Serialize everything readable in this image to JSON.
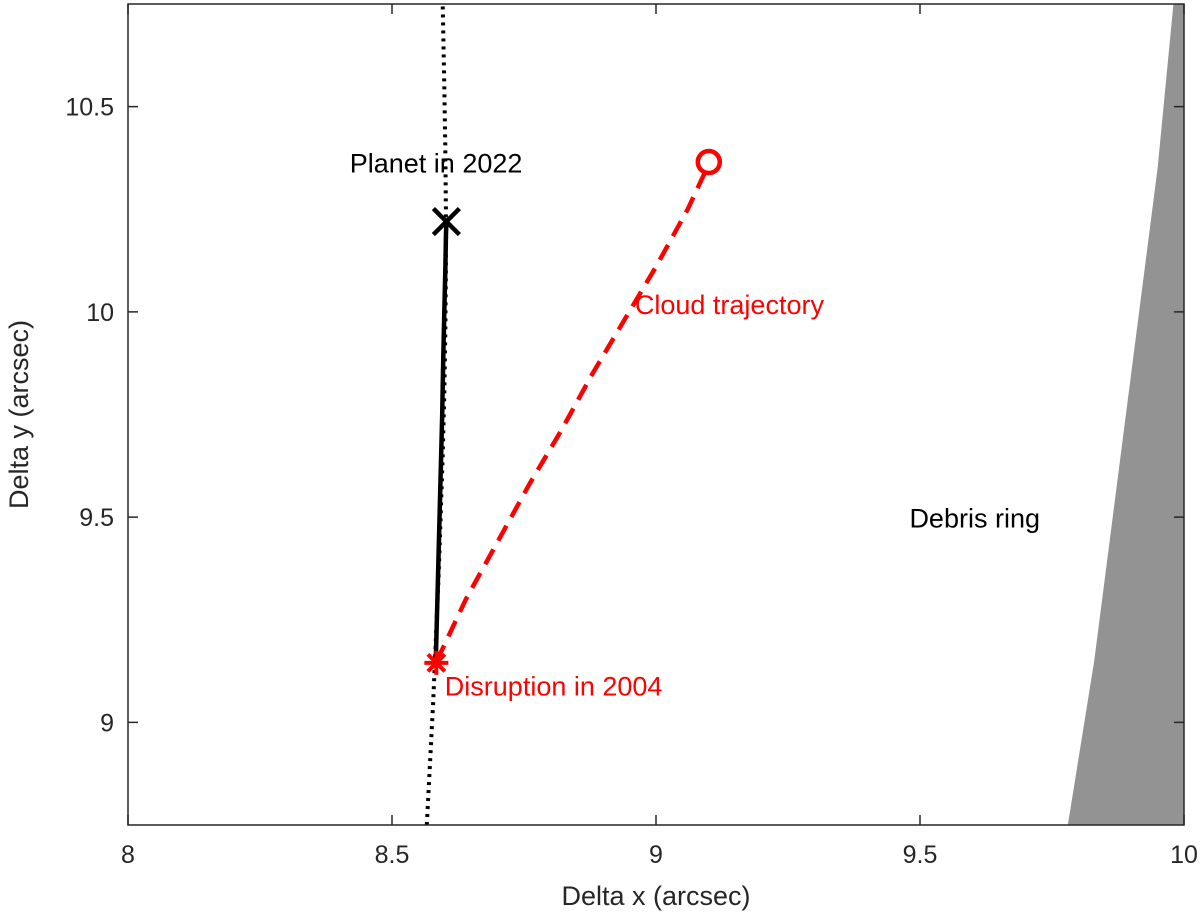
{
  "chart_data": {
    "type": "line",
    "xlabel": "Delta x (arcsec)",
    "ylabel": "Delta y (arcsec)",
    "xlim": [
      8,
      10
    ],
    "ylim": [
      8.75,
      10.75
    ],
    "xticks": [
      8,
      8.5,
      9,
      9.5,
      10
    ],
    "xtick_labels": [
      "8",
      "8.5",
      "9",
      "9.5",
      "10"
    ],
    "yticks": [
      9,
      9.5,
      10,
      10.5
    ],
    "ytick_labels": [
      "9",
      "9.5",
      "10",
      "10.5"
    ],
    "grid": false,
    "series": [
      {
        "style": "dotted",
        "color": "#000000",
        "x": [
          8.566,
          8.572,
          8.578,
          8.583,
          8.588,
          8.592,
          8.596,
          8.599,
          8.601,
          8.602,
          8.602,
          8.601,
          8.599,
          8.596
        ],
        "y": [
          8.75,
          8.9,
          9.05,
          9.2,
          9.35,
          9.5,
          9.65,
          9.8,
          9.95,
          10.1,
          10.25,
          10.4,
          10.55,
          10.75
        ]
      },
      {
        "style": "solid",
        "color": "#000000",
        "x": [
          8.583,
          8.586,
          8.589,
          8.592,
          8.595,
          8.597,
          8.599,
          8.601,
          8.602,
          8.603
        ],
        "y": [
          9.15,
          9.3,
          9.45,
          9.6,
          9.75,
          9.88,
          10.0,
          10.1,
          10.18,
          10.22
        ]
      },
      {
        "style": "dashed",
        "color": "#ff0000",
        "x": [
          8.585,
          8.64,
          8.7,
          8.76,
          8.82,
          8.88,
          8.94,
          9.0,
          9.06,
          9.1
        ],
        "y": [
          9.15,
          9.3,
          9.44,
          9.58,
          9.71,
          9.85,
          9.98,
          10.11,
          10.25,
          10.36
        ]
      }
    ],
    "markers": [
      {
        "type": "x-mark",
        "color": "#000000",
        "x": 8.603,
        "y": 10.22
      },
      {
        "type": "asterisk",
        "color": "#ff0000",
        "x": 8.584,
        "y": 9.145
      },
      {
        "type": "circle",
        "color": "#ff0000",
        "x": 9.1,
        "y": 10.365
      }
    ],
    "debris_ring": {
      "color": "#939393",
      "boundary_x": [
        9.78,
        9.83,
        9.87,
        9.91,
        9.95,
        9.98
      ],
      "boundary_y": [
        8.75,
        9.15,
        9.55,
        9.95,
        10.35,
        10.75
      ]
    },
    "annotations": [
      {
        "text": "Planet in 2022",
        "x": 8.42,
        "y": 10.34,
        "color": "#000000"
      },
      {
        "text": "Cloud trajectory",
        "x": 8.96,
        "y": 9.995,
        "color": "#ff0000"
      },
      {
        "text": "Debris ring",
        "x": 9.48,
        "y": 9.475,
        "color": "#000000"
      },
      {
        "text": "Disruption in 2004",
        "x": 8.6,
        "y": 9.065,
        "color": "#ff0000"
      }
    ]
  }
}
